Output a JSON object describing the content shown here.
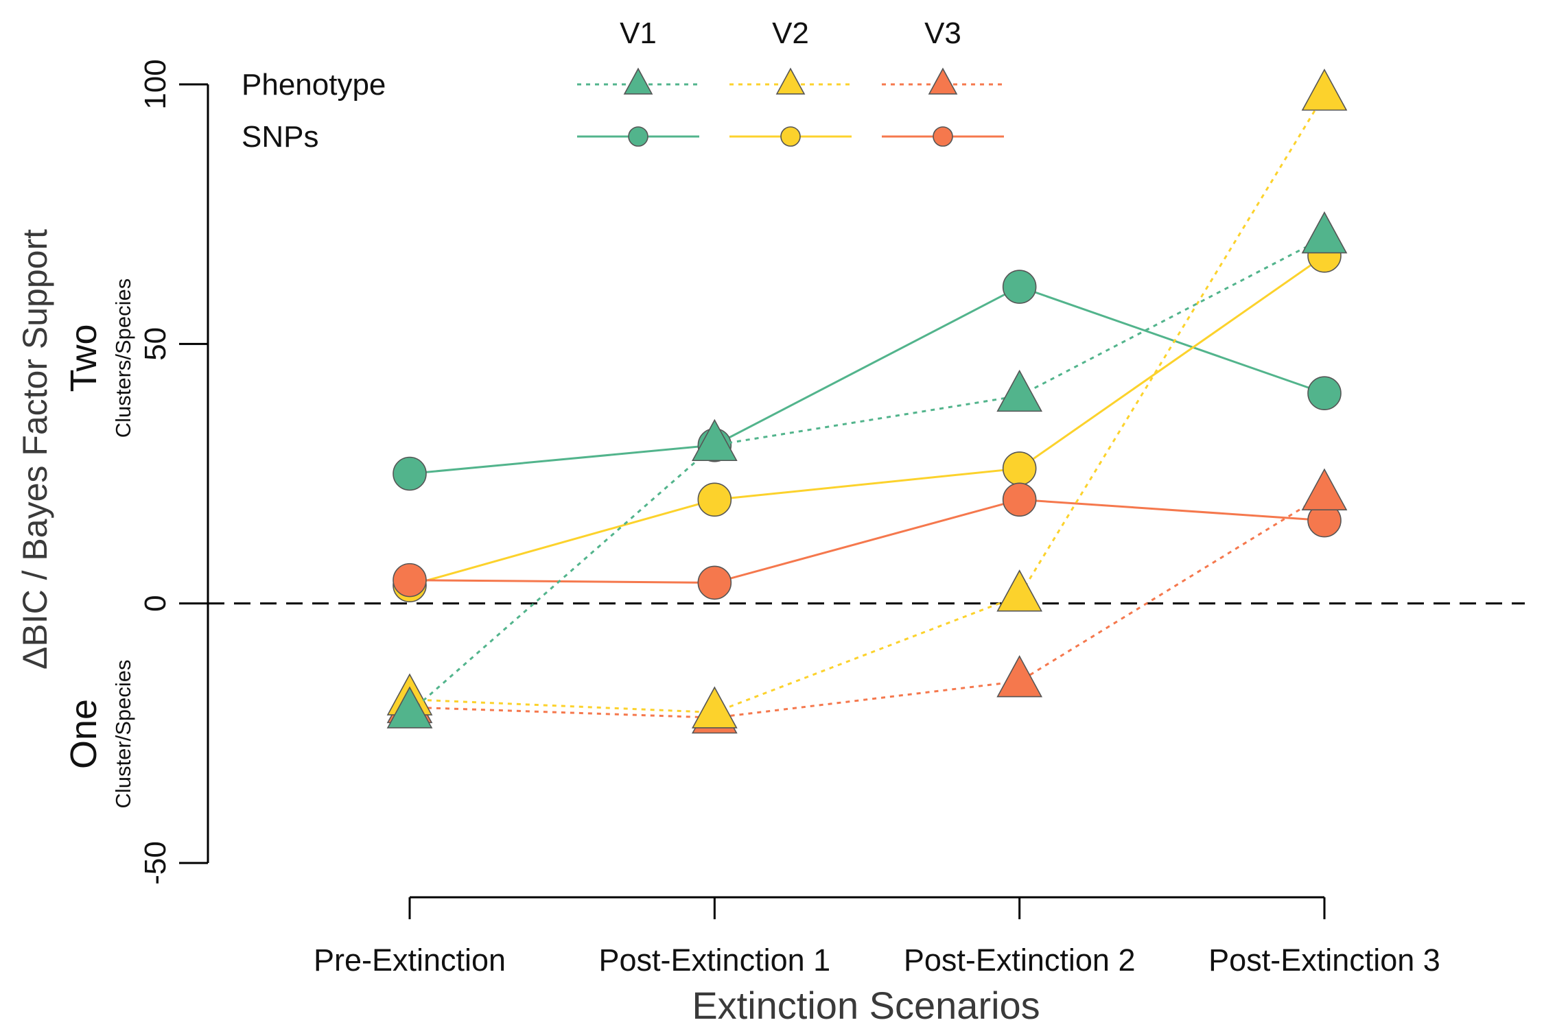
{
  "chart_data": {
    "type": "line",
    "xlabel": "Extinction Scenarios",
    "ylabel": "ΔBIC / Bayes Factor Support",
    "categories": [
      "Pre-Extinction",
      "Post-Extinction 1",
      "Post-Extinction 2",
      "Post-Extinction 3"
    ],
    "ylim": [
      -50,
      100
    ],
    "yticks": [
      "-50",
      "0",
      "50",
      "100"
    ],
    "reference_line": {
      "y": 0,
      "style": "dashed"
    },
    "annotations": {
      "two_main": "Two",
      "two_sub": "Clusters/Species",
      "one_main": "One",
      "one_sub": "Cluster/Species"
    },
    "legend": {
      "columns": [
        "V1",
        "V2",
        "V3"
      ],
      "rows": [
        "Phenotype",
        "SNPs"
      ],
      "placement": "top"
    },
    "colors": {
      "V1": "#52B48C",
      "V2": "#FCD22C",
      "V3": "#F5784D"
    },
    "series": [
      {
        "group": "V1",
        "kind": "SNPs",
        "marker": "circle",
        "line": "solid",
        "values": [
          25,
          30.5,
          61,
          40.5
        ]
      },
      {
        "group": "V2",
        "kind": "SNPs",
        "marker": "circle",
        "line": "solid",
        "values": [
          3.5,
          20,
          26,
          67
        ]
      },
      {
        "group": "V3",
        "kind": "SNPs",
        "marker": "circle",
        "line": "solid",
        "values": [
          4.5,
          4,
          20,
          16
        ]
      },
      {
        "group": "V3",
        "kind": "Phenotype",
        "marker": "triangle",
        "line": "dotted",
        "values": [
          -20,
          -22,
          -15,
          21
        ]
      },
      {
        "group": "V2",
        "kind": "Phenotype",
        "marker": "triangle",
        "line": "dotted",
        "values": [
          -18.5,
          -21,
          1.5,
          98
        ]
      },
      {
        "group": "V1",
        "kind": "Phenotype",
        "marker": "triangle",
        "line": "dotted",
        "values": [
          -21,
          30.5,
          40,
          70.5
        ]
      }
    ]
  }
}
